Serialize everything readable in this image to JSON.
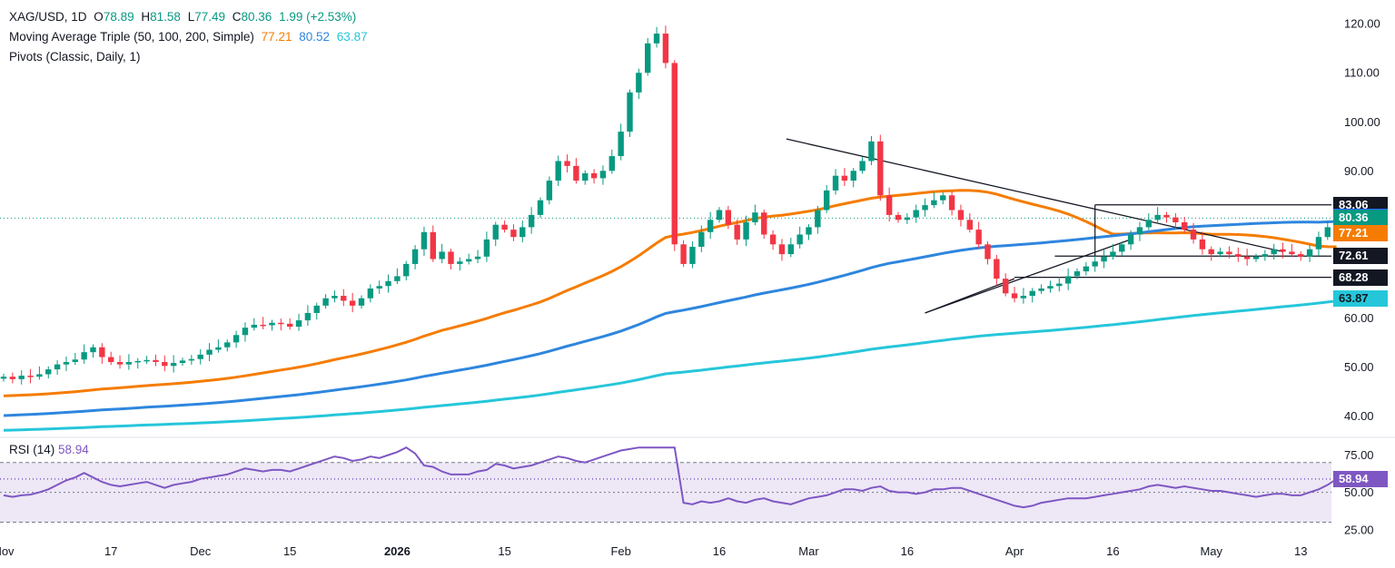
{
  "legend": {
    "symbol": "XAG/USD, 1D",
    "o_label": "O",
    "o": "78.89",
    "h_label": "H",
    "h": "81.58",
    "l_label": "L",
    "l": "77.49",
    "c_label": "C",
    "c": "80.36",
    "change": "1.99 (+2.53%)",
    "ma_label": "Moving Average Triple (50, 100, 200, Simple)",
    "ma50": "77.21",
    "ma100": "80.52",
    "ma200": "63.87",
    "pivots_label": "Pivots (Classic, Daily, 1)"
  },
  "rsi_legend": {
    "label": "RSI (14)",
    "value": "58.94"
  },
  "price_tags": [
    {
      "text": "83.06",
      "value": 83.06,
      "bg": "#131722",
      "fg": "#ffffff"
    },
    {
      "text": "80.52",
      "value": 80.52,
      "bg": "#2962ff",
      "fg": "#ffffff"
    },
    {
      "text": "80.36",
      "value": 80.36,
      "bg": "#089981",
      "fg": "#ffffff"
    },
    {
      "text": "77.21",
      "value": 77.21,
      "bg": "#f57c00",
      "fg": "#ffffff"
    },
    {
      "text": "72.61",
      "value": 72.61,
      "bg": "#131722",
      "fg": "#ffffff"
    },
    {
      "text": "68.28",
      "value": 68.28,
      "bg": "#131722",
      "fg": "#ffffff"
    },
    {
      "text": "63.87",
      "value": 63.87,
      "bg": "#26c6da",
      "fg": "#131722"
    }
  ],
  "rsi_tag": {
    "text": "58.94",
    "value": 58.94,
    "bg": "#7e57c2",
    "fg": "#ffffff"
  },
  "colors": {
    "up": "#089981",
    "down": "#f23645",
    "ma50": "#f57c00",
    "ma100": "#2e86de",
    "ma200": "#26c6da",
    "rsi": "#7e57c2",
    "rsi_band": "#ede7f6"
  },
  "chart_data": {
    "type": "candlestick",
    "title": "XAG/USD, 1D",
    "price_axis": {
      "ticks": [
        "120.00",
        "110.00",
        "100.00",
        "90.00",
        "60.00",
        "50.00",
        "40.00"
      ],
      "ylim": [
        36,
        123
      ]
    },
    "rsi_axis": {
      "ticks": [
        "75.00",
        "50.00",
        "25.00"
      ],
      "ylim": [
        20,
        85
      ],
      "levels": [
        70,
        50,
        30
      ]
    },
    "x_ticks": [
      {
        "label": "Nov",
        "i": 0
      },
      {
        "label": "17",
        "i": 12
      },
      {
        "label": "Dec",
        "i": 22
      },
      {
        "label": "15",
        "i": 32
      },
      {
        "label": "2026",
        "i": 44
      },
      {
        "label": "15",
        "i": 56
      },
      {
        "label": "Feb",
        "i": 69
      },
      {
        "label": "16",
        "i": 80
      },
      {
        "label": "Mar",
        "i": 90
      },
      {
        "label": "16",
        "i": 101
      },
      {
        "label": "Apr",
        "i": 113
      },
      {
        "label": "16",
        "i": 124
      },
      {
        "label": "May",
        "i": 135
      },
      {
        "label": "13",
        "i": 145
      }
    ],
    "close": [
      48,
      47.5,
      48.2,
      48,
      48.5,
      49.5,
      50.5,
      51,
      51.5,
      53,
      54,
      52,
      51,
      50.5,
      51,
      51.2,
      51.4,
      51,
      50.2,
      50.8,
      51.3,
      51.6,
      52.5,
      53.5,
      54,
      55,
      56.5,
      58,
      58.6,
      58.5,
      59,
      58.8,
      58.2,
      59.5,
      61,
      62.5,
      64,
      64.5,
      63.5,
      62.5,
      64,
      66,
      66.5,
      67.5,
      68.5,
      71,
      74,
      77.5,
      72,
      73.5,
      71,
      71.5,
      72,
      72.5,
      76,
      79,
      78,
      76.5,
      78.5,
      81,
      84,
      88,
      92,
      91,
      88,
      89.5,
      88.5,
      90,
      93,
      98,
      106,
      110,
      116,
      118,
      112,
      75,
      71,
      74.5,
      77.5,
      80,
      82,
      79,
      76,
      79.5,
      81.5,
      77,
      75,
      73,
      75,
      77,
      78.5,
      82,
      86,
      89,
      88,
      90,
      92,
      96,
      85,
      81,
      80,
      80.5,
      82,
      83,
      84,
      85,
      82,
      80,
      78,
      75,
      72,
      68,
      65,
      64,
      64.5,
      65.5,
      66,
      66.5,
      67,
      68.5,
      69.5,
      70.5,
      71.5,
      72.5,
      73.5,
      75,
      77,
      78.5,
      80,
      81,
      80.5,
      79.5,
      78,
      76,
      74,
      73,
      73.5,
      73,
      72.5,
      72,
      72.5,
      73,
      74,
      73.5,
      73,
      72.5,
      74,
      76.5,
      78.5,
      80.36
    ],
    "rsi": [
      48,
      47,
      48,
      48.5,
      50,
      52,
      55,
      58,
      60,
      63,
      60,
      57,
      55,
      54,
      55,
      56,
      57,
      55,
      53,
      55,
      56,
      57,
      59,
      60,
      61,
      62,
      64,
      66,
      65,
      64,
      65,
      65,
      64,
      66,
      68,
      70,
      72,
      74,
      73,
      71,
      72,
      74,
      73,
      75,
      77,
      80,
      76,
      68,
      67,
      64,
      62,
      62,
      62,
      64,
      65,
      69,
      68,
      66,
      67,
      68,
      70,
      72,
      74,
      73,
      71,
      70,
      72,
      74,
      76,
      78,
      79,
      80,
      80,
      80,
      80,
      80,
      43,
      42,
      44,
      43,
      44,
      46,
      44,
      43,
      45,
      46,
      44,
      43,
      42,
      44,
      46,
      47,
      48,
      50,
      52,
      52,
      51,
      53,
      54,
      51,
      50,
      50,
      49,
      50,
      52,
      52,
      53,
      53,
      51,
      49,
      47,
      45,
      43,
      41,
      40,
      41,
      43,
      44,
      45,
      46,
      46,
      46,
      47,
      48,
      49,
      50,
      51,
      52,
      54,
      55,
      54,
      53,
      54,
      53,
      52,
      51,
      51,
      50,
      49,
      48,
      47,
      48,
      49,
      49,
      48,
      48,
      50,
      52,
      55,
      58.94
    ]
  }
}
